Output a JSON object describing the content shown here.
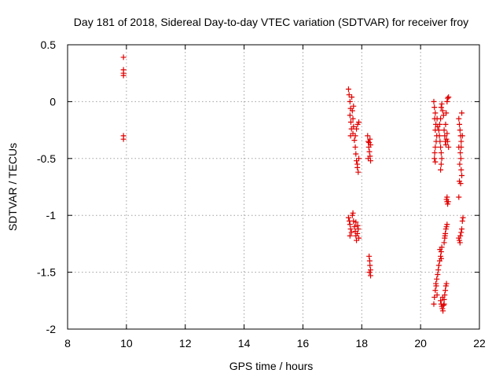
{
  "chart_data": {
    "type": "scatter",
    "title": "Day 181 of 2018, Sidereal Day-to-day VTEC variation (SDTVAR) for receiver froy",
    "xlabel": "GPS time / hours",
    "ylabel": "SDTVAR / TECUs",
    "xlim": [
      8,
      22
    ],
    "ylim": [
      -2,
      0.5
    ],
    "x_ticks": [
      "8",
      "10",
      "12",
      "14",
      "16",
      "18",
      "20",
      "22"
    ],
    "y_ticks": [
      "0.5",
      "0",
      "-0.5",
      "-1",
      "-1.5",
      "-2"
    ],
    "x_tick_values": [
      8,
      10,
      12,
      14,
      16,
      18,
      20,
      22
    ],
    "y_tick_values": [
      0.5,
      0,
      -0.5,
      -1,
      -1.5,
      -2
    ],
    "grid": true,
    "marker": "+",
    "marker_color": "#e00000",
    "series": [
      {
        "name": "SDTVAR",
        "points": [
          [
            9.9,
            0.39
          ],
          [
            9.9,
            0.28
          ],
          [
            9.9,
            0.25
          ],
          [
            9.9,
            0.23
          ],
          [
            9.9,
            -0.3
          ],
          [
            9.9,
            -0.33
          ],
          [
            17.55,
            0.11
          ],
          [
            17.57,
            0.06
          ],
          [
            17.6,
            0.0
          ],
          [
            17.62,
            -0.06
          ],
          [
            17.6,
            -0.12
          ],
          [
            17.63,
            -0.18
          ],
          [
            17.65,
            -0.24
          ],
          [
            17.62,
            -0.3
          ],
          [
            17.68,
            -0.08
          ],
          [
            17.7,
            -0.15
          ],
          [
            17.72,
            -0.22
          ],
          [
            17.7,
            -0.28
          ],
          [
            17.75,
            -0.34
          ],
          [
            17.78,
            -0.4
          ],
          [
            17.8,
            -0.46
          ],
          [
            17.82,
            -0.52
          ],
          [
            17.85,
            -0.58
          ],
          [
            17.88,
            -0.62
          ],
          [
            17.85,
            -0.55
          ],
          [
            17.9,
            -0.5
          ],
          [
            17.78,
            -0.3
          ],
          [
            17.82,
            -0.24
          ],
          [
            17.86,
            -0.2
          ],
          [
            17.9,
            -0.18
          ],
          [
            17.72,
            -0.04
          ],
          [
            17.66,
            0.04
          ],
          [
            17.55,
            -1.02
          ],
          [
            17.58,
            -1.05
          ],
          [
            17.6,
            -1.08
          ],
          [
            17.62,
            -1.12
          ],
          [
            17.65,
            -1.15
          ],
          [
            17.6,
            -1.18
          ],
          [
            17.68,
            -1.0
          ],
          [
            17.7,
            -0.98
          ],
          [
            17.72,
            -1.05
          ],
          [
            17.75,
            -1.1
          ],
          [
            17.78,
            -1.14
          ],
          [
            17.8,
            -1.18
          ],
          [
            17.82,
            -1.22
          ],
          [
            17.85,
            -1.16
          ],
          [
            17.88,
            -1.12
          ],
          [
            17.9,
            -1.2
          ],
          [
            17.8,
            -1.06
          ],
          [
            17.86,
            -1.09
          ],
          [
            18.2,
            -0.3
          ],
          [
            18.22,
            -0.35
          ],
          [
            18.24,
            -0.4
          ],
          [
            18.26,
            -0.44
          ],
          [
            18.28,
            -0.48
          ],
          [
            18.3,
            -0.52
          ],
          [
            18.22,
            -0.5
          ],
          [
            18.25,
            -0.36
          ],
          [
            18.28,
            -0.33
          ],
          [
            18.3,
            -0.38
          ],
          [
            18.25,
            -1.36
          ],
          [
            18.27,
            -1.4
          ],
          [
            18.28,
            -1.44
          ],
          [
            18.3,
            -1.48
          ],
          [
            18.26,
            -1.5
          ],
          [
            18.3,
            -1.53
          ],
          [
            20.45,
            0.0
          ],
          [
            20.47,
            -0.05
          ],
          [
            20.5,
            -0.1
          ],
          [
            20.48,
            -0.15
          ],
          [
            20.52,
            -0.2
          ],
          [
            20.5,
            -0.25
          ],
          [
            20.55,
            -0.3
          ],
          [
            20.53,
            -0.35
          ],
          [
            20.5,
            -0.4
          ],
          [
            20.48,
            -0.45
          ],
          [
            20.47,
            -0.5
          ],
          [
            20.5,
            -0.53
          ],
          [
            20.56,
            -0.15
          ],
          [
            20.58,
            -0.22
          ],
          [
            20.62,
            -0.25
          ],
          [
            20.64,
            -0.3
          ],
          [
            20.66,
            -0.35
          ],
          [
            20.68,
            -0.4
          ],
          [
            20.7,
            -0.45
          ],
          [
            20.72,
            -0.5
          ],
          [
            20.7,
            -0.55
          ],
          [
            20.68,
            -0.6
          ],
          [
            20.65,
            -0.2
          ],
          [
            20.68,
            -0.15
          ],
          [
            20.7,
            -0.05
          ],
          [
            20.72,
            -0.02
          ],
          [
            20.75,
            -0.08
          ],
          [
            20.78,
            -0.12
          ],
          [
            20.8,
            -0.25
          ],
          [
            20.82,
            -0.3
          ],
          [
            20.84,
            -0.35
          ],
          [
            20.86,
            -0.38
          ],
          [
            20.88,
            -0.33
          ],
          [
            20.9,
            -0.28
          ],
          [
            20.92,
            -0.35
          ],
          [
            20.95,
            -0.4
          ],
          [
            20.85,
            -0.2
          ],
          [
            20.87,
            -0.1
          ],
          [
            20.9,
            0.0
          ],
          [
            20.92,
            0.03
          ],
          [
            20.95,
            0.04
          ],
          [
            20.88,
            -0.86
          ],
          [
            20.9,
            -0.88
          ],
          [
            20.92,
            -0.9
          ],
          [
            20.94,
            -0.88
          ],
          [
            20.9,
            -0.84
          ],
          [
            20.45,
            -1.78
          ],
          [
            20.47,
            -1.72
          ],
          [
            20.5,
            -1.66
          ],
          [
            20.52,
            -1.6
          ],
          [
            20.55,
            -1.56
          ],
          [
            20.58,
            -1.52
          ],
          [
            20.53,
            -1.62
          ],
          [
            20.56,
            -1.7
          ],
          [
            20.6,
            -1.48
          ],
          [
            20.62,
            -1.44
          ],
          [
            20.65,
            -1.4
          ],
          [
            20.68,
            -1.36
          ],
          [
            20.7,
            -1.32
          ],
          [
            20.72,
            -1.28
          ],
          [
            20.66,
            -1.3
          ],
          [
            20.7,
            -1.38
          ],
          [
            20.68,
            -1.75
          ],
          [
            20.7,
            -1.78
          ],
          [
            20.72,
            -1.8
          ],
          [
            20.74,
            -1.82
          ],
          [
            20.76,
            -1.84
          ],
          [
            20.78,
            -1.79
          ],
          [
            20.8,
            -1.74
          ],
          [
            20.82,
            -1.7
          ],
          [
            20.84,
            -1.66
          ],
          [
            20.86,
            -1.62
          ],
          [
            20.8,
            -1.78
          ],
          [
            20.75,
            -1.72
          ],
          [
            20.88,
            -1.6
          ],
          [
            20.8,
            -1.24
          ],
          [
            20.82,
            -1.2
          ],
          [
            20.84,
            -1.16
          ],
          [
            20.86,
            -1.12
          ],
          [
            20.88,
            -1.1
          ],
          [
            20.9,
            -1.08
          ],
          [
            20.83,
            -1.18
          ],
          [
            21.3,
            -0.15
          ],
          [
            21.32,
            -0.2
          ],
          [
            21.34,
            -0.25
          ],
          [
            21.36,
            -0.3
          ],
          [
            21.38,
            -0.35
          ],
          [
            21.3,
            -0.4
          ],
          [
            21.35,
            -0.45
          ],
          [
            21.37,
            -0.5
          ],
          [
            21.33,
            -0.55
          ],
          [
            21.38,
            -0.6
          ],
          [
            21.4,
            -0.65
          ],
          [
            21.32,
            -0.7
          ],
          [
            21.36,
            -0.72
          ],
          [
            21.4,
            -0.1
          ],
          [
            21.42,
            -0.3
          ],
          [
            21.38,
            -0.4
          ],
          [
            21.3,
            -0.84
          ],
          [
            21.3,
            -1.2
          ],
          [
            21.32,
            -1.22
          ],
          [
            21.35,
            -1.18
          ],
          [
            21.38,
            -1.15
          ],
          [
            21.4,
            -1.12
          ],
          [
            21.42,
            -1.05
          ],
          [
            21.44,
            -1.02
          ],
          [
            21.34,
            -1.24
          ]
        ]
      }
    ]
  }
}
